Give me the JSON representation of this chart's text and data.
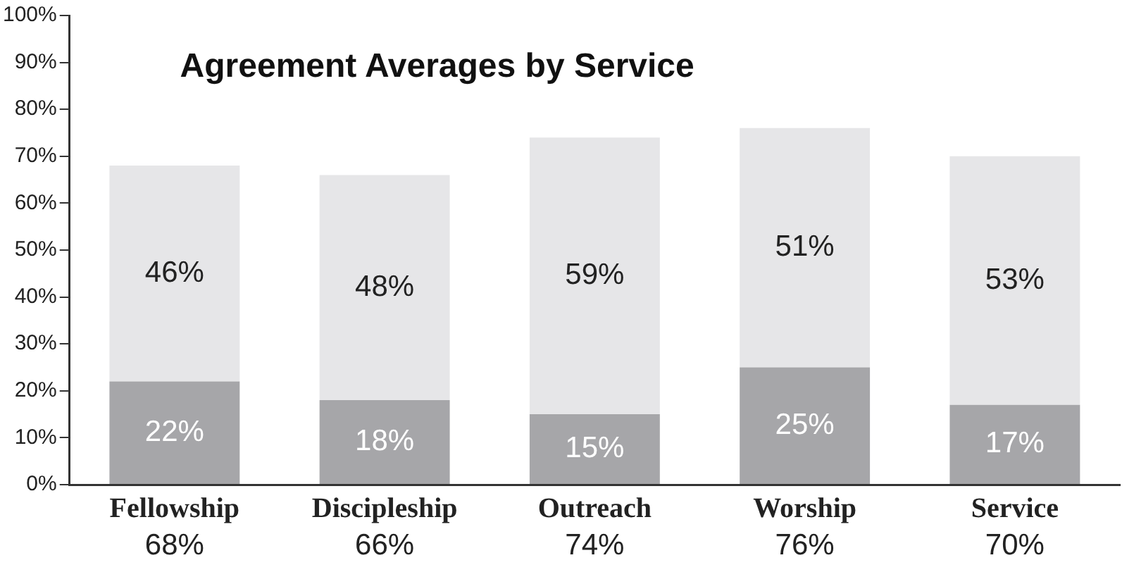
{
  "chart_data": {
    "type": "bar",
    "title": "Agreement Averages by Service",
    "categories": [
      "Fellowship",
      "Discipleship",
      "Outreach",
      "Worship",
      "Service"
    ],
    "stacked": true,
    "grid": false,
    "legend": false,
    "series": [
      {
        "color": "#a6a6a9",
        "values": [
          22,
          18,
          15,
          25,
          17
        ],
        "value_labels": [
          "22%",
          "18%",
          "15%",
          "25%",
          "17%"
        ]
      },
      {
        "color": "#e6e6e8",
        "values": [
          46,
          48,
          59,
          51,
          53
        ],
        "value_labels": [
          "46%",
          "48%",
          "59%",
          "51%",
          "53%"
        ]
      }
    ],
    "totals": [
      "68%",
      "66%",
      "74%",
      "76%",
      "70%"
    ],
    "ylim": [
      0,
      100
    ],
    "yticks": [
      {
        "value": 0,
        "label": "0%"
      },
      {
        "value": 10,
        "label": "10%"
      },
      {
        "value": 20,
        "label": "20%"
      },
      {
        "value": 30,
        "label": "30%"
      },
      {
        "value": 40,
        "label": "40%"
      },
      {
        "value": 50,
        "label": "50%"
      },
      {
        "value": 60,
        "label": "60%"
      },
      {
        "value": 70,
        "label": "70%"
      },
      {
        "value": 80,
        "label": "80%"
      },
      {
        "value": 90,
        "label": "90%"
      },
      {
        "value": 100,
        "label": "100%"
      }
    ]
  }
}
